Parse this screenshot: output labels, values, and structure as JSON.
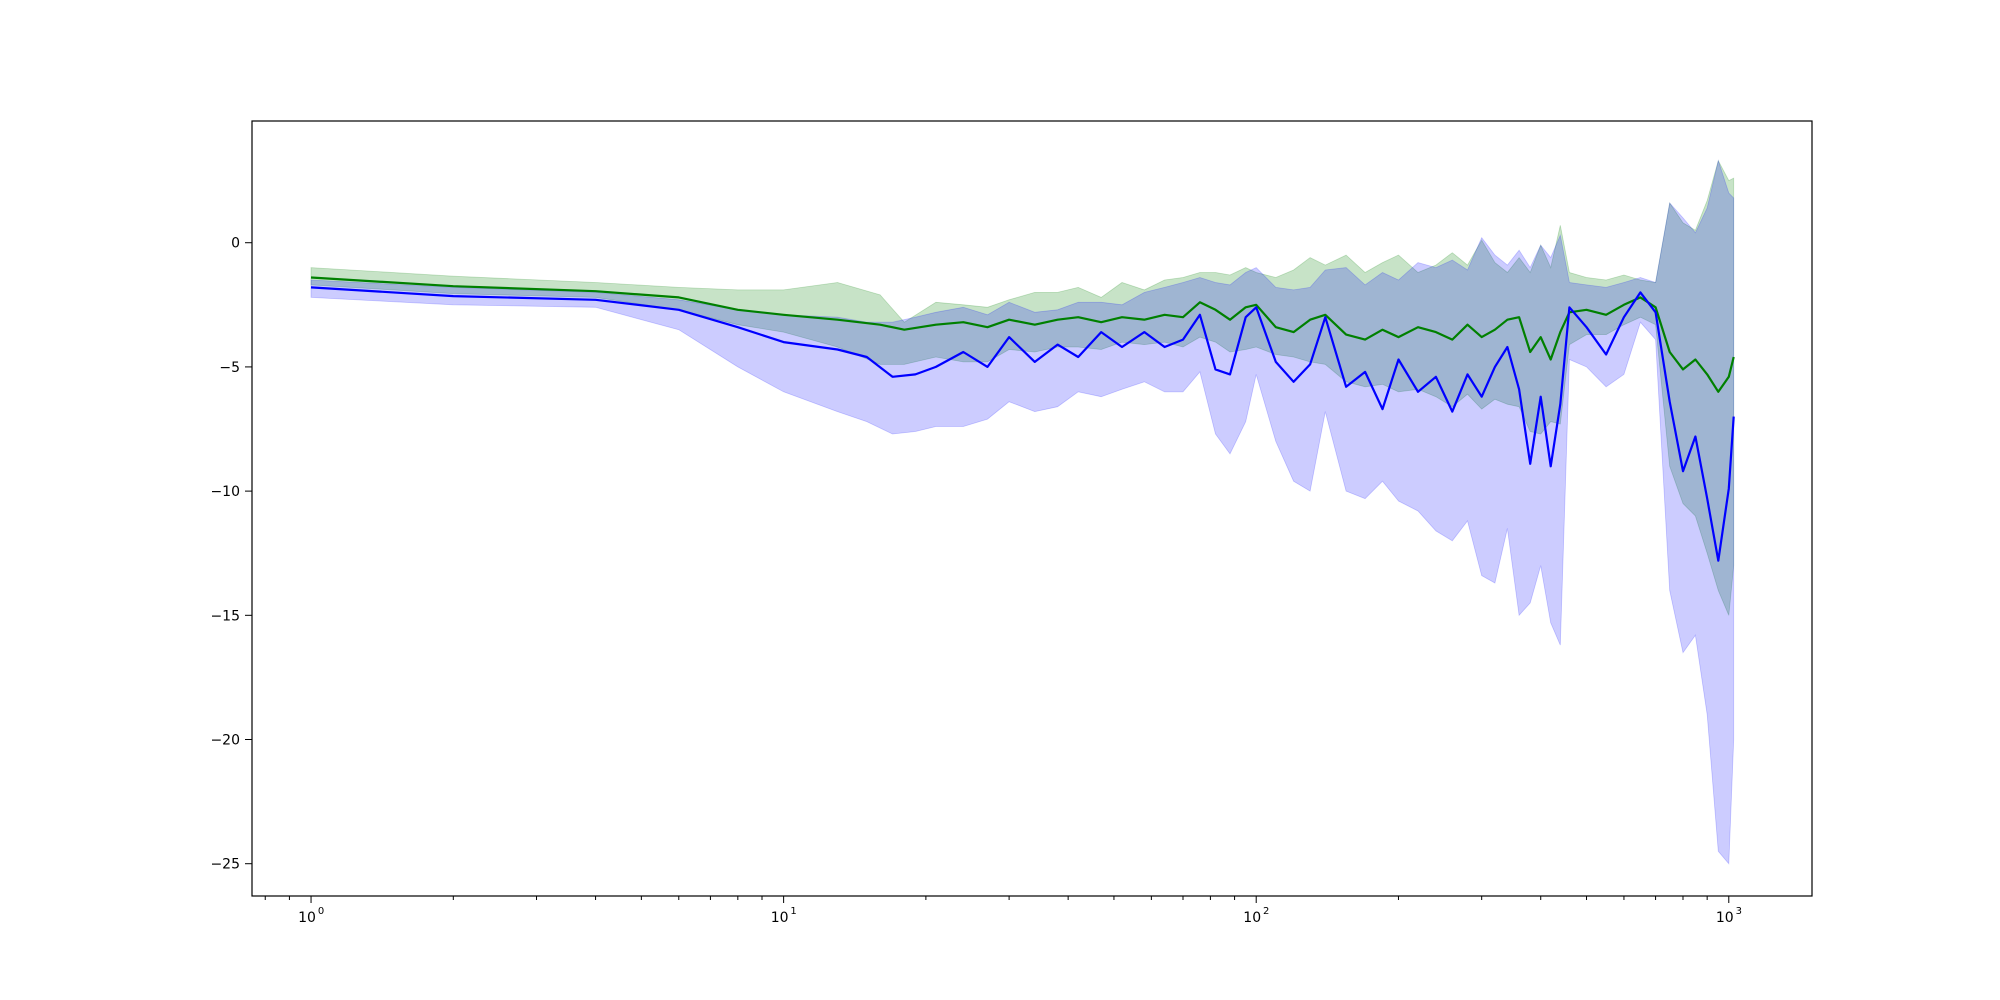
{
  "chart_data": {
    "type": "line",
    "title": "",
    "xlabel": "",
    "ylabel": "",
    "x_scale": "log",
    "xlim": [
      0.75,
      1500
    ],
    "ylim": [
      -26.3,
      4.9
    ],
    "grid": false,
    "legend": "none",
    "x_ticks": [
      {
        "value": 1,
        "label": "10",
        "exp": "0"
      },
      {
        "value": 10,
        "label": "10",
        "exp": "1"
      },
      {
        "value": 100,
        "label": "10",
        "exp": "2"
      },
      {
        "value": 1000,
        "label": "10",
        "exp": "3"
      }
    ],
    "y_ticks": [
      {
        "value": 0,
        "label": "0"
      },
      {
        "value": -5,
        "label": "−5"
      },
      {
        "value": -10,
        "label": "−10"
      },
      {
        "value": -15,
        "label": "−15"
      },
      {
        "value": -20,
        "label": "−20"
      },
      {
        "value": -25,
        "label": "−25"
      }
    ],
    "series": [
      {
        "color": "#008000",
        "band_color": "#008000",
        "band_opacity": 0.22,
        "points": [
          [
            1,
            -1.4,
            -1.0,
            -1.7
          ],
          [
            2,
            -1.75,
            -1.35,
            -2.05
          ],
          [
            4,
            -1.95,
            -1.6,
            -2.2
          ],
          [
            6,
            -2.2,
            -1.8,
            -2.7
          ],
          [
            8,
            -2.7,
            -1.9,
            -3.3
          ],
          [
            10,
            -2.9,
            -1.9,
            -3.6
          ],
          [
            13,
            -3.1,
            -1.6,
            -4.2
          ],
          [
            16,
            -3.3,
            -2.1,
            -4.9
          ],
          [
            18,
            -3.5,
            -3.2,
            -4.9
          ],
          [
            21,
            -3.3,
            -2.4,
            -4.6
          ],
          [
            24,
            -3.2,
            -2.5,
            -4.8
          ],
          [
            27,
            -3.4,
            -2.6,
            -4.8
          ],
          [
            30,
            -3.1,
            -2.3,
            -4.3
          ],
          [
            34,
            -3.3,
            -2.0,
            -4.4
          ],
          [
            38,
            -3.1,
            -2.0,
            -4.2
          ],
          [
            42,
            -3.0,
            -1.8,
            -4.2
          ],
          [
            47,
            -3.2,
            -2.2,
            -4.3
          ],
          [
            52,
            -3.0,
            -1.6,
            -4.0
          ],
          [
            58,
            -3.1,
            -1.9,
            -4.1
          ],
          [
            64,
            -2.9,
            -1.5,
            -4.0
          ],
          [
            70,
            -3.0,
            -1.4,
            -4.2
          ],
          [
            76,
            -2.4,
            -1.2,
            -3.8
          ],
          [
            82,
            -2.7,
            -1.2,
            -4.0
          ],
          [
            88,
            -3.1,
            -1.3,
            -4.4
          ],
          [
            95,
            -2.6,
            -1.0,
            -4.3
          ],
          [
            100,
            -2.5,
            -1.2,
            -4.2
          ],
          [
            110,
            -3.4,
            -1.4,
            -4.5
          ],
          [
            120,
            -3.6,
            -1.1,
            -4.6
          ],
          [
            130,
            -3.1,
            -0.6,
            -4.8
          ],
          [
            140,
            -2.9,
            -0.9,
            -4.9
          ],
          [
            155,
            -3.7,
            -0.5,
            -5.6
          ],
          [
            170,
            -3.9,
            -1.2,
            -5.8
          ],
          [
            185,
            -3.5,
            -0.8,
            -5.7
          ],
          [
            200,
            -3.8,
            -0.5,
            -6.0
          ],
          [
            220,
            -3.4,
            -1.2,
            -5.9
          ],
          [
            240,
            -3.6,
            -0.9,
            -6.2
          ],
          [
            260,
            -3.9,
            -0.4,
            -6.6
          ],
          [
            280,
            -3.3,
            -0.9,
            -6.1
          ],
          [
            300,
            -3.8,
            0.1,
            -6.7
          ],
          [
            320,
            -3.5,
            -0.8,
            -6.3
          ],
          [
            340,
            -3.1,
            -1.2,
            -6.5
          ],
          [
            360,
            -3.0,
            -0.6,
            -6.6
          ],
          [
            380,
            -4.4,
            -1.2,
            -7.6
          ],
          [
            400,
            -3.8,
            -0.1,
            -7.7
          ],
          [
            420,
            -4.7,
            -1.0,
            -7.2
          ],
          [
            440,
            -3.6,
            0.7,
            -7.3
          ],
          [
            460,
            -2.8,
            -1.2,
            -4.1
          ],
          [
            500,
            -2.7,
            -1.4,
            -3.7
          ],
          [
            550,
            -2.9,
            -1.5,
            -3.7
          ],
          [
            600,
            -2.5,
            -1.3,
            -3.3
          ],
          [
            650,
            -2.2,
            -1.5,
            -3.0
          ],
          [
            700,
            -2.6,
            -1.6,
            -3.3
          ],
          [
            750,
            -4.4,
            1.6,
            -9.0
          ],
          [
            800,
            -5.1,
            0.8,
            -10.5
          ],
          [
            850,
            -4.7,
            0.5,
            -11.0
          ],
          [
            900,
            -5.3,
            1.7,
            -12.5
          ],
          [
            950,
            -6.0,
            3.3,
            -14.0
          ],
          [
            1000,
            -5.4,
            2.5,
            -15.0
          ],
          [
            1024,
            -4.6,
            2.6,
            -13.0
          ]
        ]
      },
      {
        "color": "#0000ff",
        "band_color": "#0000ff",
        "band_opacity": 0.2,
        "points": [
          [
            1,
            -1.8,
            -1.5,
            -2.2
          ],
          [
            2,
            -2.15,
            -1.8,
            -2.5
          ],
          [
            4,
            -2.3,
            -2.0,
            -2.6
          ],
          [
            6,
            -2.7,
            -2.3,
            -3.5
          ],
          [
            8,
            -3.4,
            -2.7,
            -5.0
          ],
          [
            10,
            -4.0,
            -2.9,
            -6.0
          ],
          [
            13,
            -4.3,
            -3.0,
            -6.8
          ],
          [
            15,
            -4.6,
            -3.2,
            -7.2
          ],
          [
            17,
            -5.4,
            -3.2,
            -7.7
          ],
          [
            19,
            -5.3,
            -3.0,
            -7.6
          ],
          [
            21,
            -5.0,
            -2.8,
            -7.4
          ],
          [
            24,
            -4.4,
            -2.6,
            -7.4
          ],
          [
            27,
            -5.0,
            -2.9,
            -7.1
          ],
          [
            30,
            -3.8,
            -2.4,
            -6.4
          ],
          [
            34,
            -4.8,
            -2.8,
            -6.8
          ],
          [
            38,
            -4.1,
            -2.7,
            -6.6
          ],
          [
            42,
            -4.6,
            -2.4,
            -6.0
          ],
          [
            47,
            -3.6,
            -2.4,
            -6.2
          ],
          [
            52,
            -4.2,
            -2.5,
            -5.9
          ],
          [
            58,
            -3.6,
            -2.0,
            -5.6
          ],
          [
            64,
            -4.2,
            -1.8,
            -6.0
          ],
          [
            70,
            -3.9,
            -1.6,
            -6.0
          ],
          [
            76,
            -2.9,
            -1.4,
            -5.2
          ],
          [
            82,
            -5.1,
            -1.6,
            -7.7
          ],
          [
            88,
            -5.3,
            -1.7,
            -8.5
          ],
          [
            95,
            -3.0,
            -1.2,
            -7.2
          ],
          [
            100,
            -2.6,
            -1.0,
            -5.3
          ],
          [
            110,
            -4.8,
            -1.8,
            -8.0
          ],
          [
            120,
            -5.6,
            -1.9,
            -9.6
          ],
          [
            130,
            -4.9,
            -1.8,
            -10.0
          ],
          [
            140,
            -3.0,
            -1.1,
            -6.8
          ],
          [
            155,
            -5.8,
            -1.0,
            -10.0
          ],
          [
            170,
            -5.2,
            -1.7,
            -10.3
          ],
          [
            185,
            -6.7,
            -1.2,
            -9.6
          ],
          [
            200,
            -4.7,
            -1.5,
            -10.4
          ],
          [
            220,
            -6.0,
            -0.8,
            -10.8
          ],
          [
            240,
            -5.4,
            -1.0,
            -11.6
          ],
          [
            260,
            -6.8,
            -0.7,
            -12.0
          ],
          [
            280,
            -5.3,
            -1.1,
            -11.2
          ],
          [
            300,
            -6.2,
            0.2,
            -13.4
          ],
          [
            320,
            -5.0,
            -0.5,
            -13.7
          ],
          [
            340,
            -4.2,
            -0.9,
            -11.5
          ],
          [
            360,
            -5.9,
            -0.3,
            -15.0
          ],
          [
            380,
            -8.9,
            -1.0,
            -14.5
          ],
          [
            400,
            -6.2,
            -0.1,
            -13.0
          ],
          [
            420,
            -9.0,
            -0.6,
            -15.3
          ],
          [
            440,
            -6.5,
            0.3,
            -16.2
          ],
          [
            460,
            -2.6,
            -1.6,
            -4.7
          ],
          [
            500,
            -3.4,
            -1.7,
            -5.0
          ],
          [
            550,
            -4.5,
            -1.8,
            -5.8
          ],
          [
            600,
            -3.0,
            -1.6,
            -5.3
          ],
          [
            650,
            -2.0,
            -1.4,
            -3.2
          ],
          [
            700,
            -2.8,
            -1.6,
            -3.9
          ],
          [
            750,
            -6.4,
            1.6,
            -14.0
          ],
          [
            800,
            -9.2,
            1.0,
            -16.5
          ],
          [
            850,
            -7.8,
            0.4,
            -15.8
          ],
          [
            900,
            -10.3,
            1.4,
            -19.0
          ],
          [
            950,
            -12.8,
            3.3,
            -24.5
          ],
          [
            1000,
            -9.9,
            2.0,
            -25.0
          ],
          [
            1024,
            -7.0,
            1.8,
            -20.0
          ]
        ]
      }
    ]
  }
}
